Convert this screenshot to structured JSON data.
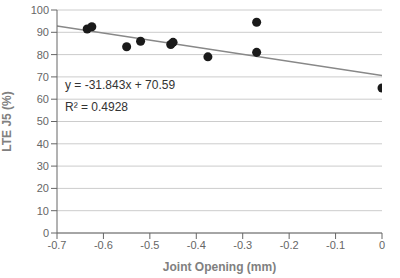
{
  "chart_data": {
    "type": "scatter",
    "xlabel": "Joint Opening (mm)",
    "ylabel": "LTE J5 (%)",
    "series": [
      {
        "type": "scatter",
        "color": "#1a1a1a",
        "marker": "circle",
        "x": [
          -0.635,
          -0.625,
          -0.55,
          -0.52,
          -0.455,
          -0.45,
          -0.375,
          -0.27,
          -0.27,
          0.0
        ],
        "values": [
          91.5,
          92.5,
          83.5,
          86.0,
          84.5,
          85.5,
          79.0,
          94.5,
          81.0,
          65.0
        ]
      },
      {
        "type": "line",
        "color": "#888888",
        "line_style": "solid",
        "x": [
          -0.7,
          0.0
        ],
        "values": [
          92.8801,
          70.59
        ]
      }
    ],
    "xlim": [
      -0.7,
      0.0
    ],
    "ylim": [
      0,
      100
    ],
    "xticks": [
      -0.7,
      -0.6,
      -0.5,
      -0.4,
      -0.3,
      -0.2,
      -0.1,
      0
    ],
    "yticks": [
      0,
      10,
      20,
      30,
      40,
      50,
      60,
      70,
      80,
      90,
      100
    ],
    "grid": true,
    "annotations": [
      "y = -31.843x + 70.59",
      "R² = 0.4928"
    ]
  }
}
